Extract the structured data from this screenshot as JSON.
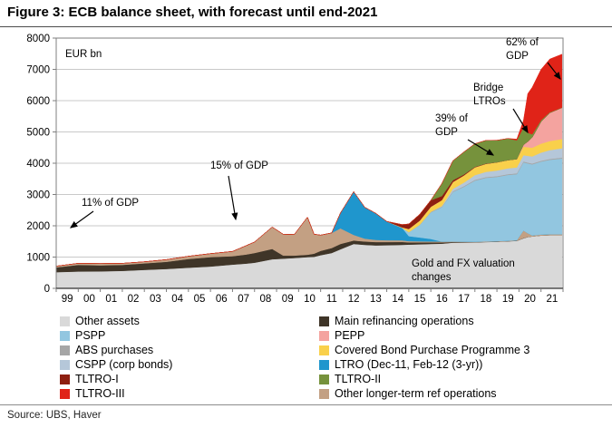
{
  "header": {
    "title": "Figure 3: ECB balance sheet, with forecast until end-2021"
  },
  "footer": {
    "source": "Source:  UBS, Haver"
  },
  "legend": {
    "columns": [
      [
        "other_assets",
        "pspp",
        "abs",
        "cspp",
        "tltro1",
        "tltro3"
      ],
      [
        "mro",
        "pepp",
        "cbpp3",
        "ltro3yr",
        "tltro2",
        "other_lt"
      ]
    ]
  },
  "chart_data": {
    "type": "area",
    "title": "ECB balance sheet, with forecast until end-2021",
    "ylabel": "EUR bn",
    "xlim": [
      1999,
      2022
    ],
    "ylim": [
      0,
      8000
    ],
    "grid": "horizontal",
    "legend_position": "bottom",
    "yticks": [
      0,
      1000,
      2000,
      3000,
      4000,
      5000,
      6000,
      7000,
      8000
    ],
    "xticks": [
      "99",
      "00",
      "01",
      "02",
      "03",
      "04",
      "05",
      "06",
      "07",
      "08",
      "09",
      "10",
      "11",
      "12",
      "13",
      "14",
      "15",
      "16",
      "17",
      "18",
      "19",
      "20",
      "21"
    ],
    "x": [
      1999,
      2000,
      2001,
      2002,
      2003,
      2004,
      2005,
      2006,
      2007,
      2007.6,
      2008,
      2008.8,
      2009.3,
      2009.8,
      2010.4,
      2010.7,
      2011,
      2011.5,
      2011.9,
      2012.5,
      2013,
      2013.5,
      2014,
      2014.7,
      2015,
      2015.5,
      2016,
      2016.5,
      2017,
      2017.5,
      2018,
      2018.5,
      2019,
      2019.5,
      2019.9,
      2020.2,
      2020.4,
      2020.6,
      2021,
      2021.4,
      2021.95
    ],
    "series": [
      {
        "id": "other_assets",
        "label": "Other assets",
        "color": "#d9d9d9",
        "values": [
          520,
          540,
          545,
          560,
          590,
          620,
          660,
          700,
          760,
          790,
          820,
          930,
          950,
          970,
          1000,
          1010,
          1060,
          1130,
          1250,
          1420,
          1390,
          1375,
          1380,
          1390,
          1400,
          1410,
          1420,
          1430,
          1460,
          1465,
          1470,
          1480,
          1490,
          1505,
          1520,
          1600,
          1640,
          1660,
          1690,
          1700,
          1700
        ]
      },
      {
        "id": "mro",
        "label": "Main refinancing operations",
        "color": "#3f3528",
        "values": [
          150,
          210,
          190,
          190,
          210,
          230,
          280,
          300,
          270,
          290,
          310,
          330,
          100,
          80,
          75,
          100,
          140,
          160,
          170,
          110,
          110,
          105,
          100,
          95,
          70,
          60,
          50,
          40,
          20,
          12,
          8,
          7,
          6,
          5,
          5,
          10,
          5,
          2,
          1,
          1,
          1
        ]
      },
      {
        "id": "other_lt",
        "label": "Other longer-term ref operations",
        "color": "#c3a083",
        "values": [
          40,
          50,
          55,
          50,
          50,
          70,
          85,
          110,
          150,
          280,
          350,
          700,
          680,
          670,
          1200,
          620,
          500,
          480,
          500,
          180,
          90,
          70,
          60,
          50,
          40,
          35,
          30,
          25,
          20,
          18,
          15,
          15,
          15,
          15,
          15,
          240,
          120,
          30,
          30,
          30,
          30
        ]
      },
      {
        "id": "ltro3yr",
        "label": "LTRO (Dec-11, Feb-12 (3-yr))",
        "color": "#1f96cd",
        "values": [
          0,
          0,
          0,
          0,
          0,
          0,
          0,
          0,
          0,
          0,
          0,
          0,
          0,
          0,
          0,
          0,
          0,
          0,
          490,
          1380,
          1000,
          850,
          600,
          400,
          160,
          120,
          80,
          0,
          0,
          0,
          0,
          0,
          0,
          0,
          0,
          0,
          0,
          0,
          0,
          0,
          0
        ]
      },
      {
        "id": "pspp",
        "label": "PSPP",
        "color": "#92c6e0",
        "values": [
          0,
          0,
          0,
          0,
          0,
          0,
          0,
          0,
          0,
          0,
          0,
          0,
          0,
          0,
          0,
          0,
          0,
          0,
          0,
          0,
          0,
          0,
          0,
          0,
          120,
          400,
          850,
          1100,
          1580,
          1750,
          1950,
          2030,
          2050,
          2100,
          2110,
          2180,
          2230,
          2270,
          2330,
          2380,
          2420
        ]
      },
      {
        "id": "abs",
        "label": "ABS purchases",
        "color": "#a6a6a6",
        "values": [
          0,
          0,
          0,
          0,
          0,
          0,
          0,
          0,
          0,
          0,
          0,
          0,
          0,
          0,
          0,
          0,
          0,
          0,
          0,
          0,
          0,
          0,
          0,
          2,
          8,
          12,
          18,
          20,
          24,
          25,
          26,
          27,
          27,
          28,
          28,
          29,
          29,
          29,
          28,
          28,
          28
        ]
      },
      {
        "id": "cspp",
        "label": "CSPP (corp bonds)",
        "color": "#b5c7d9",
        "values": [
          0,
          0,
          0,
          0,
          0,
          0,
          0,
          0,
          0,
          0,
          0,
          0,
          0,
          0,
          0,
          0,
          0,
          0,
          0,
          0,
          0,
          0,
          0,
          0,
          0,
          0,
          0,
          20,
          80,
          110,
          150,
          165,
          180,
          185,
          190,
          200,
          215,
          225,
          260,
          280,
          300
        ]
      },
      {
        "id": "cbpp3",
        "label": "Covered Bond Purchase Programme 3",
        "color": "#f9d04b",
        "values": [
          0,
          0,
          0,
          0,
          0,
          0,
          0,
          0,
          0,
          0,
          0,
          0,
          0,
          0,
          0,
          0,
          0,
          0,
          0,
          0,
          0,
          0,
          0,
          15,
          100,
          130,
          160,
          185,
          215,
          230,
          250,
          255,
          260,
          262,
          264,
          270,
          275,
          280,
          288,
          292,
          295
        ]
      },
      {
        "id": "pepp",
        "label": "PEPP",
        "color": "#f4a39f",
        "values": [
          0,
          0,
          0,
          0,
          0,
          0,
          0,
          0,
          0,
          0,
          0,
          0,
          0,
          0,
          0,
          0,
          0,
          0,
          0,
          0,
          0,
          0,
          0,
          0,
          0,
          0,
          0,
          0,
          0,
          0,
          0,
          0,
          0,
          0,
          0,
          60,
          180,
          330,
          700,
          900,
          1000
        ]
      },
      {
        "id": "tltro1",
        "label": "TLTRO-I",
        "color": "#8e1f10",
        "values": [
          0,
          0,
          0,
          0,
          0,
          0,
          0,
          0,
          0,
          0,
          0,
          0,
          0,
          0,
          0,
          0,
          0,
          0,
          0,
          0,
          0,
          0,
          0,
          85,
          160,
          200,
          210,
          130,
          60,
          30,
          15,
          10,
          5,
          0,
          0,
          0,
          0,
          0,
          0,
          0,
          0
        ]
      },
      {
        "id": "tltro2",
        "label": "TLTRO-II",
        "color": "#76923c",
        "values": [
          0,
          0,
          0,
          0,
          0,
          0,
          0,
          0,
          0,
          0,
          0,
          0,
          0,
          0,
          0,
          0,
          0,
          0,
          0,
          0,
          0,
          0,
          0,
          0,
          0,
          0,
          0,
          400,
          620,
          720,
          740,
          740,
          700,
          690,
          600,
          550,
          280,
          100,
          50,
          20,
          10
        ]
      },
      {
        "id": "tltro3",
        "label": "TLTRO-III",
        "color": "#e02318",
        "values": [
          0,
          0,
          0,
          0,
          0,
          0,
          0,
          0,
          0,
          0,
          0,
          0,
          0,
          0,
          0,
          0,
          0,
          0,
          0,
          0,
          0,
          0,
          0,
          0,
          0,
          0,
          0,
          0,
          0,
          0,
          0,
          0,
          0,
          0,
          40,
          220,
          1250,
          1500,
          1620,
          1700,
          1700
        ]
      }
    ],
    "annotations": [
      {
        "id": "eur_bn",
        "text": "EUR bn"
      },
      {
        "id": "gdp11",
        "text": "11% of GDP"
      },
      {
        "id": "gdp15",
        "text": "15% of GDP"
      },
      {
        "id": "gdp39",
        "text": "39% of\nGDP"
      },
      {
        "id": "bridge",
        "text": "Bridge\nLTROs"
      },
      {
        "id": "gdp62",
        "text": "62% of\nGDP"
      },
      {
        "id": "gold",
        "text": "Gold and FX valuation\nchanges"
      }
    ]
  }
}
